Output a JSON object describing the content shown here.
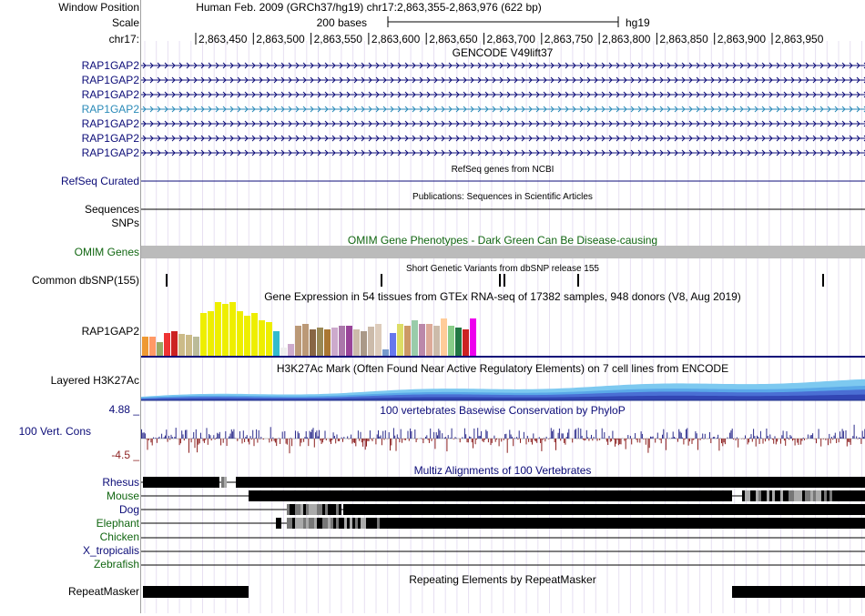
{
  "header": {
    "window_position_label": "Window Position",
    "scale_label": "Scale",
    "chrom_label": "chr17:",
    "assembly_position": "Human Feb. 2009 (GRCh37/hg19)   chr17:2,863,355-2,863,976 (622 bp)",
    "scale_text": "200 bases",
    "scale_db": "hg19",
    "ticks": [
      "2,863,450",
      "2,863,500",
      "2,863,550",
      "2,863,600",
      "2,863,650",
      "2,863,700",
      "2,863,750",
      "2,863,800",
      "2,863,850",
      "2,863,900",
      "2,863,950"
    ]
  },
  "tracks": {
    "gencode": {
      "title": "GENCODE V49lift37",
      "items": [
        "RAP1GAP2",
        "RAP1GAP2",
        "RAP1GAP2",
        "RAP1GAP2",
        "RAP1GAP2",
        "RAP1GAP2",
        "RAP1GAP2"
      ],
      "highlighted_index": 3
    },
    "refseq": {
      "label": "RefSeq Curated",
      "title": "RefSeq genes from NCBI"
    },
    "publications": {
      "label": "Sequences",
      "title": "Publications: Sequences in Scientific Articles"
    },
    "snps": {
      "label": "SNPs"
    },
    "omim": {
      "label": "OMIM Genes",
      "title": "OMIM Gene Phenotypes - Dark Green Can Be Disease-causing"
    },
    "dbsnp": {
      "label": "Common dbSNP(155)",
      "title": "Short Genetic Variants from dbSNP release 155"
    },
    "gtex": {
      "label": "RAP1GAP2",
      "title": "Gene Expression in 54 tissues from GTEx RNA-seq of 17382 samples, 948 donors (V8, Aug 2019)"
    },
    "h3k27ac": {
      "label": "Layered H3K27Ac",
      "title": "H3K27Ac Mark (Often Found Near Active Regulatory Elements) on 7 cell lines from ENCODE"
    },
    "phylop": {
      "label": "100 Vert. Cons",
      "max_label": "4.88 _",
      "min_label": "-4.5 _",
      "title": "100 vertebrates Basewise Conservation by PhyloP"
    },
    "multiz": {
      "title": "Multiz Alignments of 100 Vertebrates",
      "species": [
        "Rhesus",
        "Mouse",
        "Dog",
        "Elephant",
        "Chicken",
        "X_tropicalis",
        "Zebrafish"
      ]
    },
    "repeatmasker": {
      "label": "RepeatMasker",
      "title": "Repeating Elements by RepeatMasker"
    }
  },
  "colors": {
    "label_navy": "#0c0c78",
    "label_green": "#116611",
    "omim_gray": "#bbbbbb",
    "phylop_pos": "#2c2c8c",
    "phylop_neg": "#8c1f1f",
    "h3k27ac_light": "#7dc9f0",
    "h3k27ac_dark": "#3246b4"
  }
}
